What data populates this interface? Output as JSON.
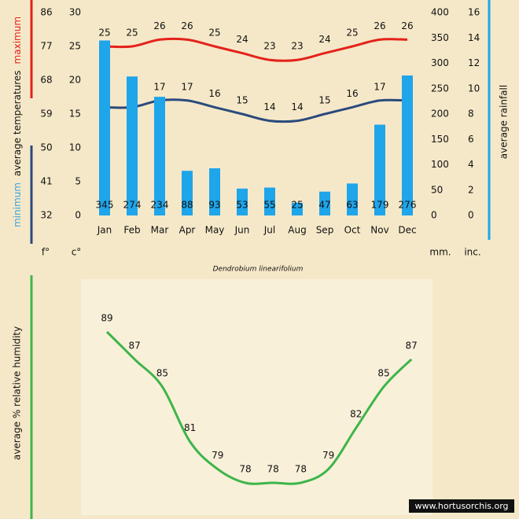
{
  "chart_data": [
    {
      "type": "combo",
      "subtitle": "Dendrobium linearifolium",
      "categories": [
        "Jan",
        "Feb",
        "Mar",
        "Apr",
        "May",
        "Jun",
        "Jul",
        "Aug",
        "Sep",
        "Oct",
        "Nov",
        "Dec"
      ],
      "ylabel": "average  temperatures",
      "ylim": [
        0,
        30
      ],
      "yticks": [
        0,
        5,
        10,
        15,
        20,
        25,
        30
      ],
      "yunit": "c°",
      "ylim_fahrenheit": [
        32,
        86
      ],
      "yticks_fahrenheit": [
        32,
        41,
        50,
        59,
        68,
        77,
        86
      ],
      "yunit_fahrenheit": "f°",
      "y2lim": [
        0,
        400
      ],
      "y2ticks": [
        0,
        50,
        100,
        150,
        200,
        250,
        300,
        350,
        400
      ],
      "y2unit": "mm.",
      "y2lim_inches": [
        0,
        16
      ],
      "y2ticks_inches": [
        0,
        2,
        4,
        6,
        8,
        10,
        12,
        14,
        16
      ],
      "y2unit_inches": "inc.",
      "series": [
        {
          "name": "maximum",
          "type": "line",
          "color": "#e4221b",
          "values": [
            25,
            25,
            26,
            26,
            25,
            24,
            23,
            23,
            24,
            25,
            26,
            26
          ]
        },
        {
          "name": "minimum",
          "type": "line",
          "color": "#2b4a7c",
          "values": [
            16,
            16,
            17,
            17,
            16,
            15,
            14,
            14,
            15,
            16,
            17,
            17
          ]
        },
        {
          "name": "average rainfall",
          "type": "bar",
          "axis": "y2",
          "color": "#1ea5ea",
          "values": [
            345,
            274,
            234,
            88,
            93,
            53,
            55,
            25,
            47,
            63,
            179,
            276
          ]
        }
      ]
    },
    {
      "type": "line",
      "ylabel": "average %  relative humidity",
      "color": "#3db54a",
      "values": [
        89,
        87,
        85,
        81,
        79,
        78,
        78,
        78,
        79,
        82,
        85,
        87
      ],
      "watermark": "www.hortusorchis.org"
    }
  ]
}
